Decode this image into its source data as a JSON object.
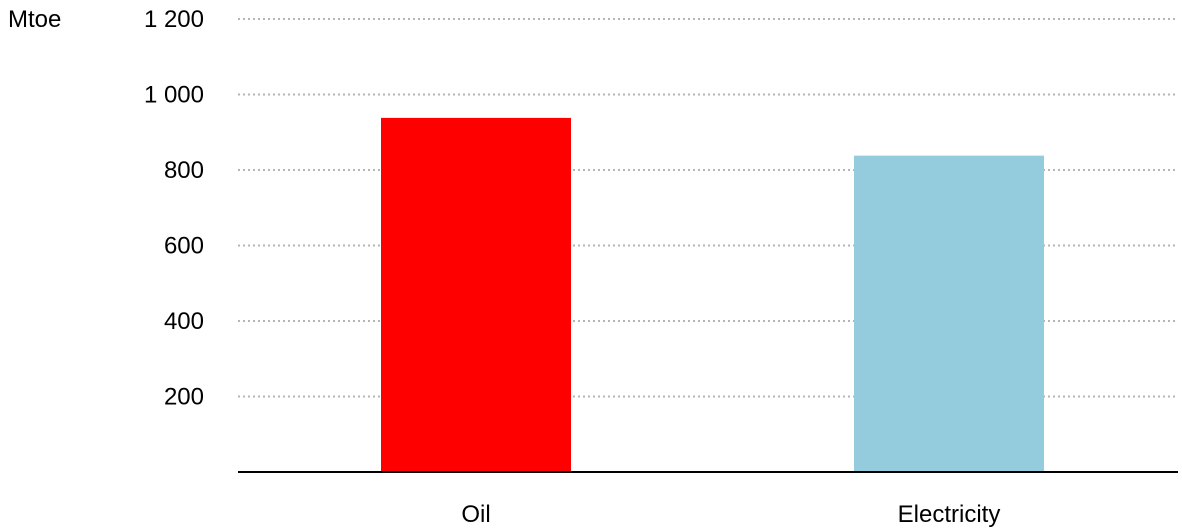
{
  "chart_data": {
    "type": "bar",
    "title": "",
    "xlabel": "",
    "ylabel": "Mtoe",
    "categories": [
      "Oil",
      "Electricity"
    ],
    "values": [
      938,
      838
    ],
    "colors": [
      "#ff0000",
      "#94ccdd"
    ],
    "ylim": [
      0,
      1200
    ],
    "yticks": [
      200,
      400,
      600,
      800,
      1000,
      1200
    ],
    "ytick_labels": [
      "200",
      "400",
      "600",
      "800",
      "1 000",
      "1 200"
    ],
    "grid": true,
    "legend": "none"
  }
}
